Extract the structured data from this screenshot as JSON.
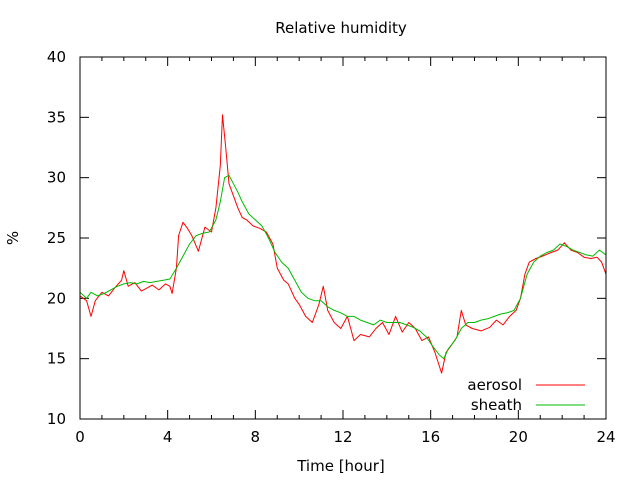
{
  "chart_data": {
    "type": "line",
    "title": "Relative humidity",
    "xlabel": "Time [hour]",
    "ylabel": "%",
    "xlim": [
      0,
      24
    ],
    "ylim": [
      10,
      40
    ],
    "xticks": [
      0,
      4,
      8,
      12,
      16,
      20,
      24
    ],
    "yticks": [
      10,
      15,
      20,
      25,
      30,
      35,
      40
    ],
    "xtick_labels": [
      "0",
      "4",
      "8",
      "12",
      "16",
      "20",
      "24"
    ],
    "ytick_labels": [
      "10",
      "15",
      "20",
      "25",
      "30",
      "35",
      "40"
    ],
    "grid": false,
    "legend": "bottom-right",
    "series": [
      {
        "name": "aerosol",
        "color": "#ff0000",
        "points": [
          [
            0.0,
            20.2
          ],
          [
            0.3,
            19.8
          ],
          [
            0.5,
            18.5
          ],
          [
            0.7,
            19.8
          ],
          [
            1.0,
            20.5
          ],
          [
            1.3,
            20.2
          ],
          [
            1.6,
            20.9
          ],
          [
            1.9,
            21.5
          ],
          [
            2.0,
            22.3
          ],
          [
            2.2,
            21.0
          ],
          [
            2.5,
            21.3
          ],
          [
            2.8,
            20.6
          ],
          [
            3.0,
            20.8
          ],
          [
            3.3,
            21.1
          ],
          [
            3.6,
            20.7
          ],
          [
            3.9,
            21.2
          ],
          [
            4.1,
            21.0
          ],
          [
            4.2,
            20.4
          ],
          [
            4.4,
            22.5
          ],
          [
            4.5,
            25.2
          ],
          [
            4.7,
            26.3
          ],
          [
            4.9,
            25.8
          ],
          [
            5.1,
            25.2
          ],
          [
            5.4,
            23.9
          ],
          [
            5.7,
            25.9
          ],
          [
            6.0,
            25.5
          ],
          [
            6.2,
            27.5
          ],
          [
            6.4,
            31.0
          ],
          [
            6.5,
            35.2
          ],
          [
            6.65,
            32.5
          ],
          [
            6.8,
            29.5
          ],
          [
            7.0,
            28.5
          ],
          [
            7.2,
            27.5
          ],
          [
            7.4,
            26.7
          ],
          [
            7.6,
            26.5
          ],
          [
            7.9,
            26.0
          ],
          [
            8.2,
            25.8
          ],
          [
            8.5,
            25.5
          ],
          [
            8.8,
            24.5
          ],
          [
            9.0,
            22.5
          ],
          [
            9.3,
            21.5
          ],
          [
            9.5,
            21.2
          ],
          [
            9.8,
            20.0
          ],
          [
            10.0,
            19.5
          ],
          [
            10.3,
            18.5
          ],
          [
            10.6,
            18.0
          ],
          [
            10.9,
            19.5
          ],
          [
            11.1,
            21.0
          ],
          [
            11.3,
            19.0
          ],
          [
            11.6,
            18.0
          ],
          [
            11.9,
            17.5
          ],
          [
            12.2,
            18.5
          ],
          [
            12.5,
            16.5
          ],
          [
            12.8,
            17.0
          ],
          [
            13.2,
            16.8
          ],
          [
            13.5,
            17.5
          ],
          [
            13.8,
            18.0
          ],
          [
            14.1,
            17.0
          ],
          [
            14.4,
            18.5
          ],
          [
            14.7,
            17.2
          ],
          [
            15.0,
            18.0
          ],
          [
            15.3,
            17.5
          ],
          [
            15.6,
            16.5
          ],
          [
            15.9,
            16.8
          ],
          [
            16.2,
            15.5
          ],
          [
            16.5,
            13.8
          ],
          [
            16.7,
            15.5
          ],
          [
            16.9,
            16.0
          ],
          [
            17.2,
            16.8
          ],
          [
            17.4,
            19.0
          ],
          [
            17.6,
            17.8
          ],
          [
            17.9,
            17.5
          ],
          [
            18.3,
            17.3
          ],
          [
            18.7,
            17.6
          ],
          [
            19.0,
            18.2
          ],
          [
            19.3,
            17.8
          ],
          [
            19.6,
            18.5
          ],
          [
            19.9,
            19.0
          ],
          [
            20.1,
            20.0
          ],
          [
            20.3,
            22.0
          ],
          [
            20.5,
            23.0
          ],
          [
            20.8,
            23.3
          ],
          [
            21.1,
            23.5
          ],
          [
            21.5,
            23.8
          ],
          [
            21.8,
            24.0
          ],
          [
            22.1,
            24.6
          ],
          [
            22.4,
            24.0
          ],
          [
            22.7,
            23.8
          ],
          [
            23.0,
            23.4
          ],
          [
            23.3,
            23.3
          ],
          [
            23.6,
            23.4
          ],
          [
            23.8,
            23.0
          ],
          [
            24.0,
            22.0
          ]
        ]
      },
      {
        "name": "sheath",
        "color": "#00bb00",
        "points": [
          [
            0.0,
            20.5
          ],
          [
            0.3,
            20.0
          ],
          [
            0.5,
            20.5
          ],
          [
            0.8,
            20.2
          ],
          [
            1.1,
            20.4
          ],
          [
            1.4,
            20.7
          ],
          [
            1.7,
            21.0
          ],
          [
            2.0,
            21.2
          ],
          [
            2.3,
            21.3
          ],
          [
            2.6,
            21.2
          ],
          [
            2.9,
            21.4
          ],
          [
            3.2,
            21.3
          ],
          [
            3.5,
            21.4
          ],
          [
            3.8,
            21.5
          ],
          [
            4.1,
            21.6
          ],
          [
            4.4,
            22.5
          ],
          [
            4.7,
            23.5
          ],
          [
            5.0,
            24.5
          ],
          [
            5.3,
            25.2
          ],
          [
            5.6,
            25.4
          ],
          [
            5.9,
            25.5
          ],
          [
            6.2,
            26.5
          ],
          [
            6.4,
            28.0
          ],
          [
            6.6,
            30.0
          ],
          [
            6.8,
            30.2
          ],
          [
            7.0,
            29.5
          ],
          [
            7.2,
            28.8
          ],
          [
            7.4,
            28.0
          ],
          [
            7.7,
            27.0
          ],
          [
            8.0,
            26.5
          ],
          [
            8.3,
            26.0
          ],
          [
            8.6,
            25.0
          ],
          [
            8.9,
            23.8
          ],
          [
            9.2,
            23.0
          ],
          [
            9.5,
            22.5
          ],
          [
            9.8,
            21.5
          ],
          [
            10.1,
            20.5
          ],
          [
            10.4,
            20.0
          ],
          [
            10.7,
            19.8
          ],
          [
            11.0,
            19.8
          ],
          [
            11.3,
            19.3
          ],
          [
            11.6,
            19.0
          ],
          [
            11.9,
            18.8
          ],
          [
            12.2,
            18.5
          ],
          [
            12.5,
            18.5
          ],
          [
            12.8,
            18.2
          ],
          [
            13.1,
            18.0
          ],
          [
            13.4,
            17.8
          ],
          [
            13.7,
            18.2
          ],
          [
            14.0,
            18.0
          ],
          [
            14.3,
            18.0
          ],
          [
            14.6,
            18.0
          ],
          [
            14.9,
            17.8
          ],
          [
            15.2,
            17.6
          ],
          [
            15.5,
            17.3
          ],
          [
            15.8,
            16.8
          ],
          [
            16.1,
            16.0
          ],
          [
            16.4,
            15.3
          ],
          [
            16.6,
            15.0
          ],
          [
            16.8,
            15.8
          ],
          [
            17.1,
            16.5
          ],
          [
            17.4,
            17.5
          ],
          [
            17.7,
            18.0
          ],
          [
            18.0,
            18.0
          ],
          [
            18.3,
            18.2
          ],
          [
            18.6,
            18.3
          ],
          [
            18.9,
            18.5
          ],
          [
            19.2,
            18.7
          ],
          [
            19.5,
            18.8
          ],
          [
            19.8,
            19.0
          ],
          [
            20.1,
            20.0
          ],
          [
            20.4,
            22.0
          ],
          [
            20.7,
            23.0
          ],
          [
            21.0,
            23.5
          ],
          [
            21.3,
            23.8
          ],
          [
            21.6,
            24.0
          ],
          [
            21.9,
            24.5
          ],
          [
            22.2,
            24.3
          ],
          [
            22.5,
            24.0
          ],
          [
            22.8,
            23.8
          ],
          [
            23.1,
            23.6
          ],
          [
            23.4,
            23.5
          ],
          [
            23.7,
            24.0
          ],
          [
            24.0,
            23.6
          ]
        ]
      }
    ]
  }
}
